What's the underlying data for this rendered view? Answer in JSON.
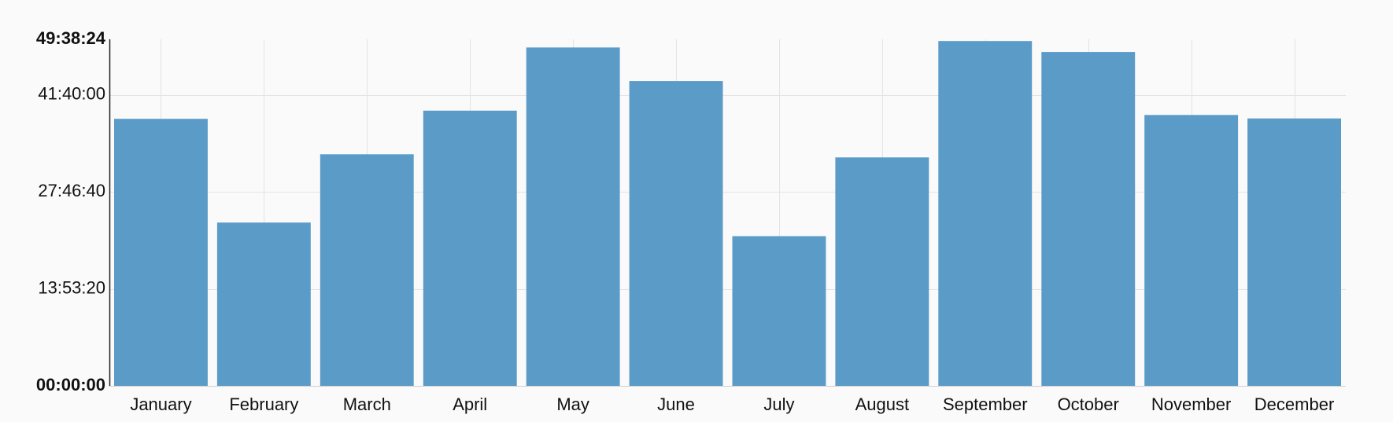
{
  "chart_data": {
    "type": "bar",
    "categories": [
      "January",
      "February",
      "March",
      "April",
      "May",
      "June",
      "July",
      "August",
      "September",
      "October",
      "November",
      "December"
    ],
    "values_seconds": [
      137700,
      84200,
      119400,
      141900,
      174500,
      157200,
      77200,
      117800,
      177800,
      172200,
      139700,
      137900
    ],
    "y_unit": "duration hh:mm:ss",
    "ylim_seconds": [
      0,
      178704
    ],
    "yticks": [
      {
        "label": "00:00:00",
        "value": 0,
        "bold": true
      },
      {
        "label": "13:53:20",
        "value": 50000,
        "bold": false
      },
      {
        "label": "27:46:40",
        "value": 100000,
        "bold": false
      },
      {
        "label": "41:40:00",
        "value": 150000,
        "bold": false
      },
      {
        "label": "49:38:24",
        "value": 178704,
        "bold": true
      }
    ],
    "bar_color": "#5b9bc8",
    "grid": true,
    "grid_color": "#e3e3e3",
    "title": "",
    "xlabel": "",
    "ylabel": ""
  }
}
